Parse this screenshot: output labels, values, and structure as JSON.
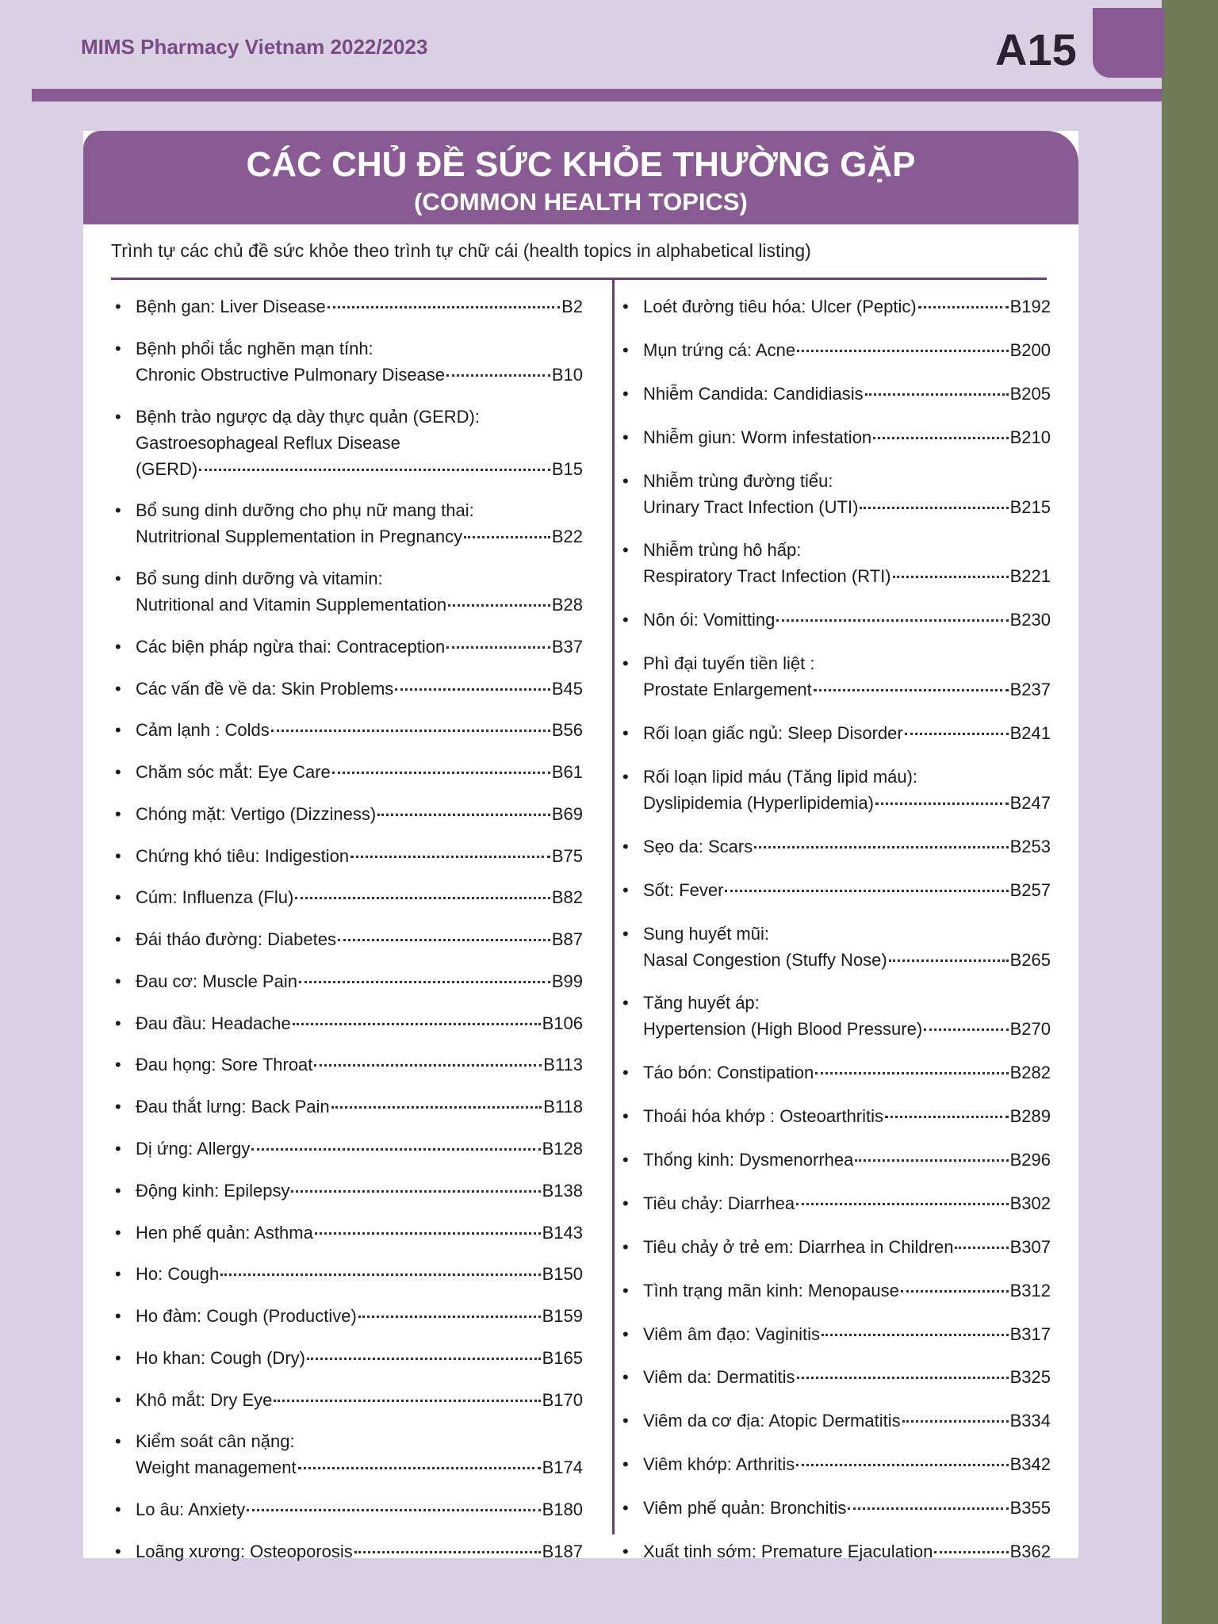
{
  "header": {
    "publication": "MIMS Pharmacy Vietnam 2022/2023",
    "page": "A15"
  },
  "title": "CÁC CHỦ ĐỀ SỨC KHỎE THƯỜNG GẶP",
  "subtitle": "(COMMON HEALTH TOPICS)",
  "intro": "Trình tự các chủ đề sức khỏe theo trình tự chữ cái (health topics in alphabetical listing)",
  "left": [
    {
      "lines": [
        "Bệnh gan: Liver Disease"
      ],
      "page": "B2"
    },
    {
      "lines": [
        "Bệnh phổi tắc nghẽn mạn tính:",
        "Chronic Obstructive Pulmonary Disease"
      ],
      "page": "B10"
    },
    {
      "lines": [
        "Bệnh trào ngược dạ dày thực quản (GERD):",
        "Gastroesophageal Reflux Disease",
        "(GERD)"
      ],
      "page": "B15"
    },
    {
      "lines": [
        "Bổ sung dinh dưỡng cho phụ nữ mang thai:",
        "Nutritrional Supplementation in Pregnancy"
      ],
      "page": "B22"
    },
    {
      "lines": [
        "Bổ sung dinh dưỡng và vitamin:",
        "Nutritional and Vitamin Supplementation"
      ],
      "page": "B28"
    },
    {
      "lines": [
        "Các biện pháp ngừa thai: Contraception"
      ],
      "page": "B37"
    },
    {
      "lines": [
        "Các vấn đề về da: Skin Problems"
      ],
      "page": "B45"
    },
    {
      "lines": [
        "Cảm lạnh : Colds"
      ],
      "page": "B56"
    },
    {
      "lines": [
        "Chăm sóc mắt: Eye Care"
      ],
      "page": "B61"
    },
    {
      "lines": [
        "Chóng mặt: Vertigo (Dizziness)"
      ],
      "page": "B69"
    },
    {
      "lines": [
        "Chứng khó tiêu: Indigestion"
      ],
      "page": "B75"
    },
    {
      "lines": [
        "Cúm: Influenza (Flu)"
      ],
      "page": "B82"
    },
    {
      "lines": [
        "Đái tháo đường: Diabetes"
      ],
      "page": "B87"
    },
    {
      "lines": [
        "Đau cơ: Muscle Pain"
      ],
      "page": "B99"
    },
    {
      "lines": [
        "Đau đầu: Headache"
      ],
      "page": "B106"
    },
    {
      "lines": [
        "Đau họng: Sore Throat"
      ],
      "page": "B113"
    },
    {
      "lines": [
        "Đau thắt lưng: Back Pain"
      ],
      "page": "B118"
    },
    {
      "lines": [
        "Dị ứng: Allergy"
      ],
      "page": "B128"
    },
    {
      "lines": [
        "Động kinh: Epilepsy"
      ],
      "page": "B138"
    },
    {
      "lines": [
        "Hen phế quản: Asthma"
      ],
      "page": "B143"
    },
    {
      "lines": [
        "Ho: Cough"
      ],
      "page": "B150"
    },
    {
      "lines": [
        "Ho đàm: Cough (Productive)"
      ],
      "page": "B159"
    },
    {
      "lines": [
        "Ho khan: Cough (Dry)"
      ],
      "page": "B165"
    },
    {
      "lines": [
        "Khô mắt: Dry Eye"
      ],
      "page": "B170"
    },
    {
      "lines": [
        "Kiểm soát cân nặng:",
        "Weight management"
      ],
      "page": "B174"
    },
    {
      "lines": [
        "Lo âu: Anxiety"
      ],
      "page": "B180"
    },
    {
      "lines": [
        "Loãng xương: Osteoporosis"
      ],
      "page": "B187"
    }
  ],
  "right": [
    {
      "lines": [
        "Loét đường tiêu hóa: Ulcer (Peptic)"
      ],
      "page": "B192"
    },
    {
      "lines": [
        "Mụn trứng cá: Acne"
      ],
      "page": "B200"
    },
    {
      "lines": [
        "Nhiễm Candida: Candidiasis"
      ],
      "page": "B205"
    },
    {
      "lines": [
        "Nhiễm giun: Worm infestation"
      ],
      "page": "B210"
    },
    {
      "lines": [
        "Nhiễm trùng đường tiểu:",
        "Urinary Tract Infection (UTI)"
      ],
      "page": "B215"
    },
    {
      "lines": [
        "Nhiễm trùng hô hấp:",
        "Respiratory Tract Infection (RTI)"
      ],
      "page": "B221"
    },
    {
      "lines": [
        "Nôn ói: Vomitting"
      ],
      "page": "B230"
    },
    {
      "lines": [
        "Phì đại tuyến tiền liệt :",
        "Prostate Enlargement"
      ],
      "page": "B237"
    },
    {
      "lines": [
        "Rối loạn giấc ngủ: Sleep Disorder"
      ],
      "page": "B241"
    },
    {
      "lines": [
        "Rối loạn lipid máu (Tăng lipid máu):",
        "Dyslipidemia (Hyperlipidemia)"
      ],
      "page": "B247"
    },
    {
      "lines": [
        "Sẹo da: Scars"
      ],
      "page": "B253"
    },
    {
      "lines": [
        "Sốt: Fever"
      ],
      "page": "B257"
    },
    {
      "lines": [
        "Sung huyết mũi:",
        "Nasal Congestion (Stuffy Nose)"
      ],
      "page": "B265"
    },
    {
      "lines": [
        "Tăng huyết áp:",
        "Hypertension (High Blood Pressure)"
      ],
      "page": "B270"
    },
    {
      "lines": [
        "Táo bón: Constipation"
      ],
      "page": "B282"
    },
    {
      "lines": [
        "Thoái hóa khớp : Osteoarthritis"
      ],
      "page": "B289"
    },
    {
      "lines": [
        "Thống kinh: Dysmenorrhea"
      ],
      "page": "B296"
    },
    {
      "lines": [
        "Tiêu chảy: Diarrhea"
      ],
      "page": "B302"
    },
    {
      "lines": [
        "Tiêu chảy ở trẻ em: Diarrhea in Children"
      ],
      "page": "B307"
    },
    {
      "lines": [
        "Tình trạng mãn kinh: Menopause"
      ],
      "page": "B312"
    },
    {
      "lines": [
        "Viêm âm đạo: Vaginitis"
      ],
      "page": "B317"
    },
    {
      "lines": [
        "Viêm da: Dermatitis"
      ],
      "page": "B325"
    },
    {
      "lines": [
        "Viêm da cơ địa: Atopic Dermatitis"
      ],
      "page": "B334"
    },
    {
      "lines": [
        "Viêm khớp: Arthritis"
      ],
      "page": "B342"
    },
    {
      "lines": [
        "Viêm phế quản: Bronchitis"
      ],
      "page": "B355"
    },
    {
      "lines": [
        "Xuất tinh sớm: Premature Ejaculation"
      ],
      "page": "B362"
    }
  ]
}
